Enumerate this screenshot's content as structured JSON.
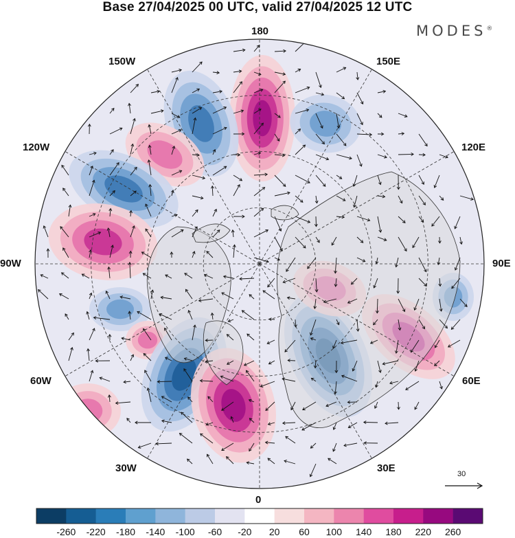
{
  "title": "Base 27/04/2025 00 UTC, valid 27/04/2025 12 UTC",
  "brand": "MODES",
  "brand_mark": "®",
  "longitude_labels": [
    {
      "id": "180",
      "text": "180"
    },
    {
      "id": "150W",
      "text": "150W"
    },
    {
      "id": "150E",
      "text": "150E"
    },
    {
      "id": "120W",
      "text": "120W"
    },
    {
      "id": "120E",
      "text": "120E"
    },
    {
      "id": "90W",
      "text": "90W"
    },
    {
      "id": "90E",
      "text": "90E"
    },
    {
      "id": "60W",
      "text": "60W"
    },
    {
      "id": "60E",
      "text": "60E"
    },
    {
      "id": "30W",
      "text": "30W"
    },
    {
      "id": "30E",
      "text": "30E"
    },
    {
      "id": "0",
      "text": "0"
    }
  ],
  "reference_vector": {
    "value": "30"
  },
  "colorbar": {
    "ticks": [
      "-260",
      "-220",
      "-180",
      "-140",
      "-100",
      "-60",
      "-20",
      "20",
      "60",
      "100",
      "140",
      "180",
      "220",
      "260"
    ],
    "colors": [
      "#0c3d64",
      "#155d93",
      "#2a7db8",
      "#5fa0cf",
      "#8fb5db",
      "#bccbe6",
      "#e3e3f1",
      "#ffffff",
      "#f7dede",
      "#f4b6c2",
      "#ec85ad",
      "#e04c9f",
      "#c71e8c",
      "#97097f",
      "#5a0a73"
    ]
  },
  "anomaly_centers": [
    {
      "sign": "positive",
      "level": 3
    },
    {
      "sign": "negative",
      "level": 2
    },
    {
      "sign": "negative",
      "level": 1
    },
    {
      "sign": "positive",
      "level": 1
    },
    {
      "sign": "negative",
      "level": 2
    },
    {
      "sign": "positive",
      "level": 2
    },
    {
      "sign": "negative",
      "level": 1
    },
    {
      "sign": "positive",
      "level": 1
    },
    {
      "sign": "negative",
      "level": 3
    },
    {
      "sign": "positive",
      "level": 3
    },
    {
      "sign": "negative",
      "level": 3
    },
    {
      "sign": "positive",
      "level": 2
    },
    {
      "sign": "positive",
      "level": 1
    },
    {
      "sign": "negative",
      "level": 1
    },
    {
      "sign": "positive",
      "level": 1
    }
  ]
}
